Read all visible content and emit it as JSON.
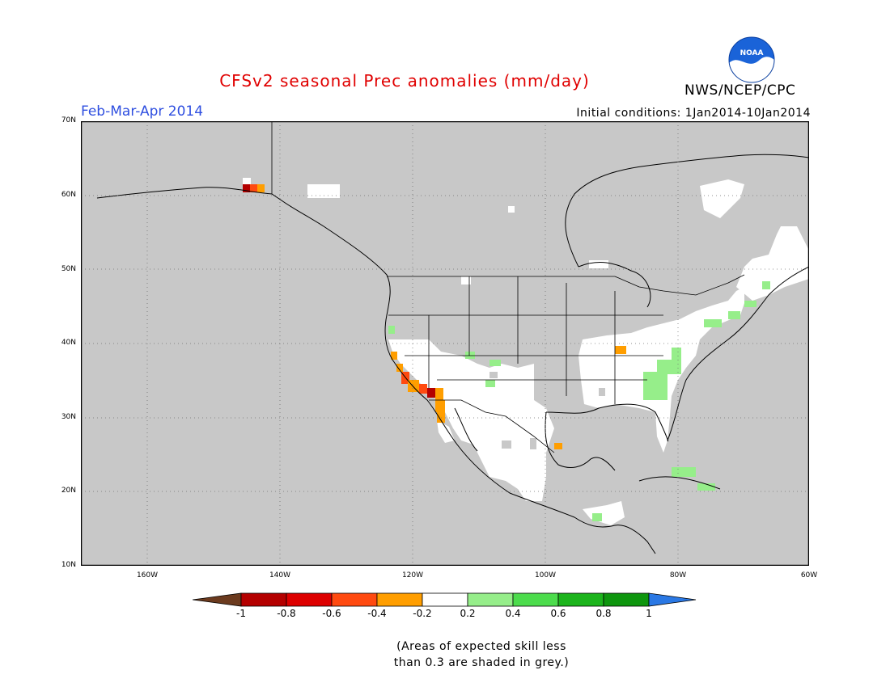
{
  "title": "CFSv2 seasonal Prec anomalies (mm/day)",
  "agency": "NWS/NCEP/CPC",
  "logo_text": "NOAA",
  "period": "Feb-Mar-Apr 2014",
  "initial_conditions": "Initial conditions: 1Jan2014-10Jan2014",
  "lat_labels": [
    "70N",
    "60N",
    "50N",
    "40N",
    "30N",
    "20N",
    "10N"
  ],
  "lon_labels": [
    "160W",
    "140W",
    "120W",
    "100W",
    "80W",
    "60W"
  ],
  "colorbar": {
    "labels": [
      "-1",
      "-0.8",
      "-0.6",
      "-0.4",
      "-0.2",
      "0.2",
      "0.4",
      "0.6",
      "0.8",
      "1"
    ],
    "colors": [
      "#6b3a1e",
      "#b40000",
      "#dd0000",
      "#ff4a10",
      "#ff9e00",
      "#ffffff",
      "#96ee8a",
      "#4cdc4c",
      "#1cb41c",
      "#0e960e",
      "#2a78e4"
    ]
  },
  "note": [
    "(Areas of expected skill less",
    "than 0.3 are shaded in grey.)"
  ],
  "colors": {
    "background_grey": "#c8c8c8",
    "title_red": "#e00000",
    "period_blue": "#2f4fe0"
  }
}
